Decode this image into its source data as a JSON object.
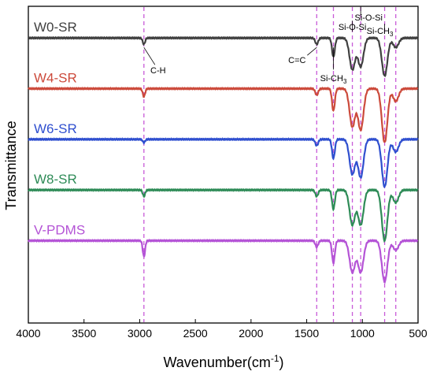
{
  "chart_data": {
    "type": "line",
    "xlabel": "Wavenumber(cm",
    "xlabel_sup": "-1",
    "xlabel_close": ")",
    "ylabel": "Transmittance",
    "xlim": [
      4000,
      500
    ],
    "x_reversed": true,
    "x_ticks": [
      4000,
      3500,
      3000,
      2500,
      2000,
      1500,
      1000,
      500
    ],
    "grid": false,
    "series": [
      {
        "name": "W0-SR",
        "color": "#404040",
        "offset": 0.9,
        "peaks": [
          {
            "x": 2962,
            "depth": 0.02
          },
          {
            "x": 1410,
            "depth": 0.02
          },
          {
            "x": 1260,
            "depth": 0.06
          },
          {
            "x": 1090,
            "depth": 0.1
          },
          {
            "x": 1015,
            "depth": 0.09
          },
          {
            "x": 800,
            "depth": 0.12
          },
          {
            "x": 700,
            "depth": 0.03
          }
        ]
      },
      {
        "name": "W4-SR",
        "color": "#cc4a3b",
        "offset": 0.74,
        "peaks": [
          {
            "x": 2962,
            "depth": 0.025
          },
          {
            "x": 1410,
            "depth": 0.02
          },
          {
            "x": 1260,
            "depth": 0.07
          },
          {
            "x": 1090,
            "depth": 0.12
          },
          {
            "x": 1015,
            "depth": 0.13
          },
          {
            "x": 800,
            "depth": 0.17
          },
          {
            "x": 700,
            "depth": 0.04
          }
        ]
      },
      {
        "name": "W6-SR",
        "color": "#2f4fcf",
        "offset": 0.58,
        "peaks": [
          {
            "x": 2962,
            "depth": 0.01
          },
          {
            "x": 1410,
            "depth": 0.02
          },
          {
            "x": 1260,
            "depth": 0.06
          },
          {
            "x": 1090,
            "depth": 0.11
          },
          {
            "x": 1015,
            "depth": 0.12
          },
          {
            "x": 800,
            "depth": 0.15
          },
          {
            "x": 700,
            "depth": 0.04
          }
        ]
      },
      {
        "name": "W8-SR",
        "color": "#2e8b57",
        "offset": 0.42,
        "peaks": [
          {
            "x": 2962,
            "depth": 0.02
          },
          {
            "x": 1410,
            "depth": 0.02
          },
          {
            "x": 1260,
            "depth": 0.06
          },
          {
            "x": 1090,
            "depth": 0.11
          },
          {
            "x": 1015,
            "depth": 0.11
          },
          {
            "x": 800,
            "depth": 0.16
          },
          {
            "x": 700,
            "depth": 0.04
          }
        ]
      },
      {
        "name": "V-PDMS",
        "color": "#b453d6",
        "offset": 0.26,
        "peaks": [
          {
            "x": 2962,
            "depth": 0.05
          },
          {
            "x": 1410,
            "depth": 0.02
          },
          {
            "x": 1260,
            "depth": 0.07
          },
          {
            "x": 1090,
            "depth": 0.1
          },
          {
            "x": 1015,
            "depth": 0.1
          },
          {
            "x": 800,
            "depth": 0.13
          },
          {
            "x": 700,
            "depth": 0.03
          }
        ]
      }
    ],
    "reference_lines": [
      2962,
      1410,
      1260,
      1090,
      1015,
      800,
      700
    ],
    "reference_line_color": "#c85ad8",
    "annotations": [
      {
        "text": "C-H",
        "x": 2962
      },
      {
        "text": "C=C",
        "x": 1410
      },
      {
        "text": "Si-CH",
        "sub": "3",
        "x": 1260
      },
      {
        "text": "Si-O-Si",
        "x": 1090
      },
      {
        "text": "Si-CH",
        "sub": "3",
        "x": 800
      },
      {
        "text": "Si-O-Si",
        "x": 1015
      }
    ]
  }
}
